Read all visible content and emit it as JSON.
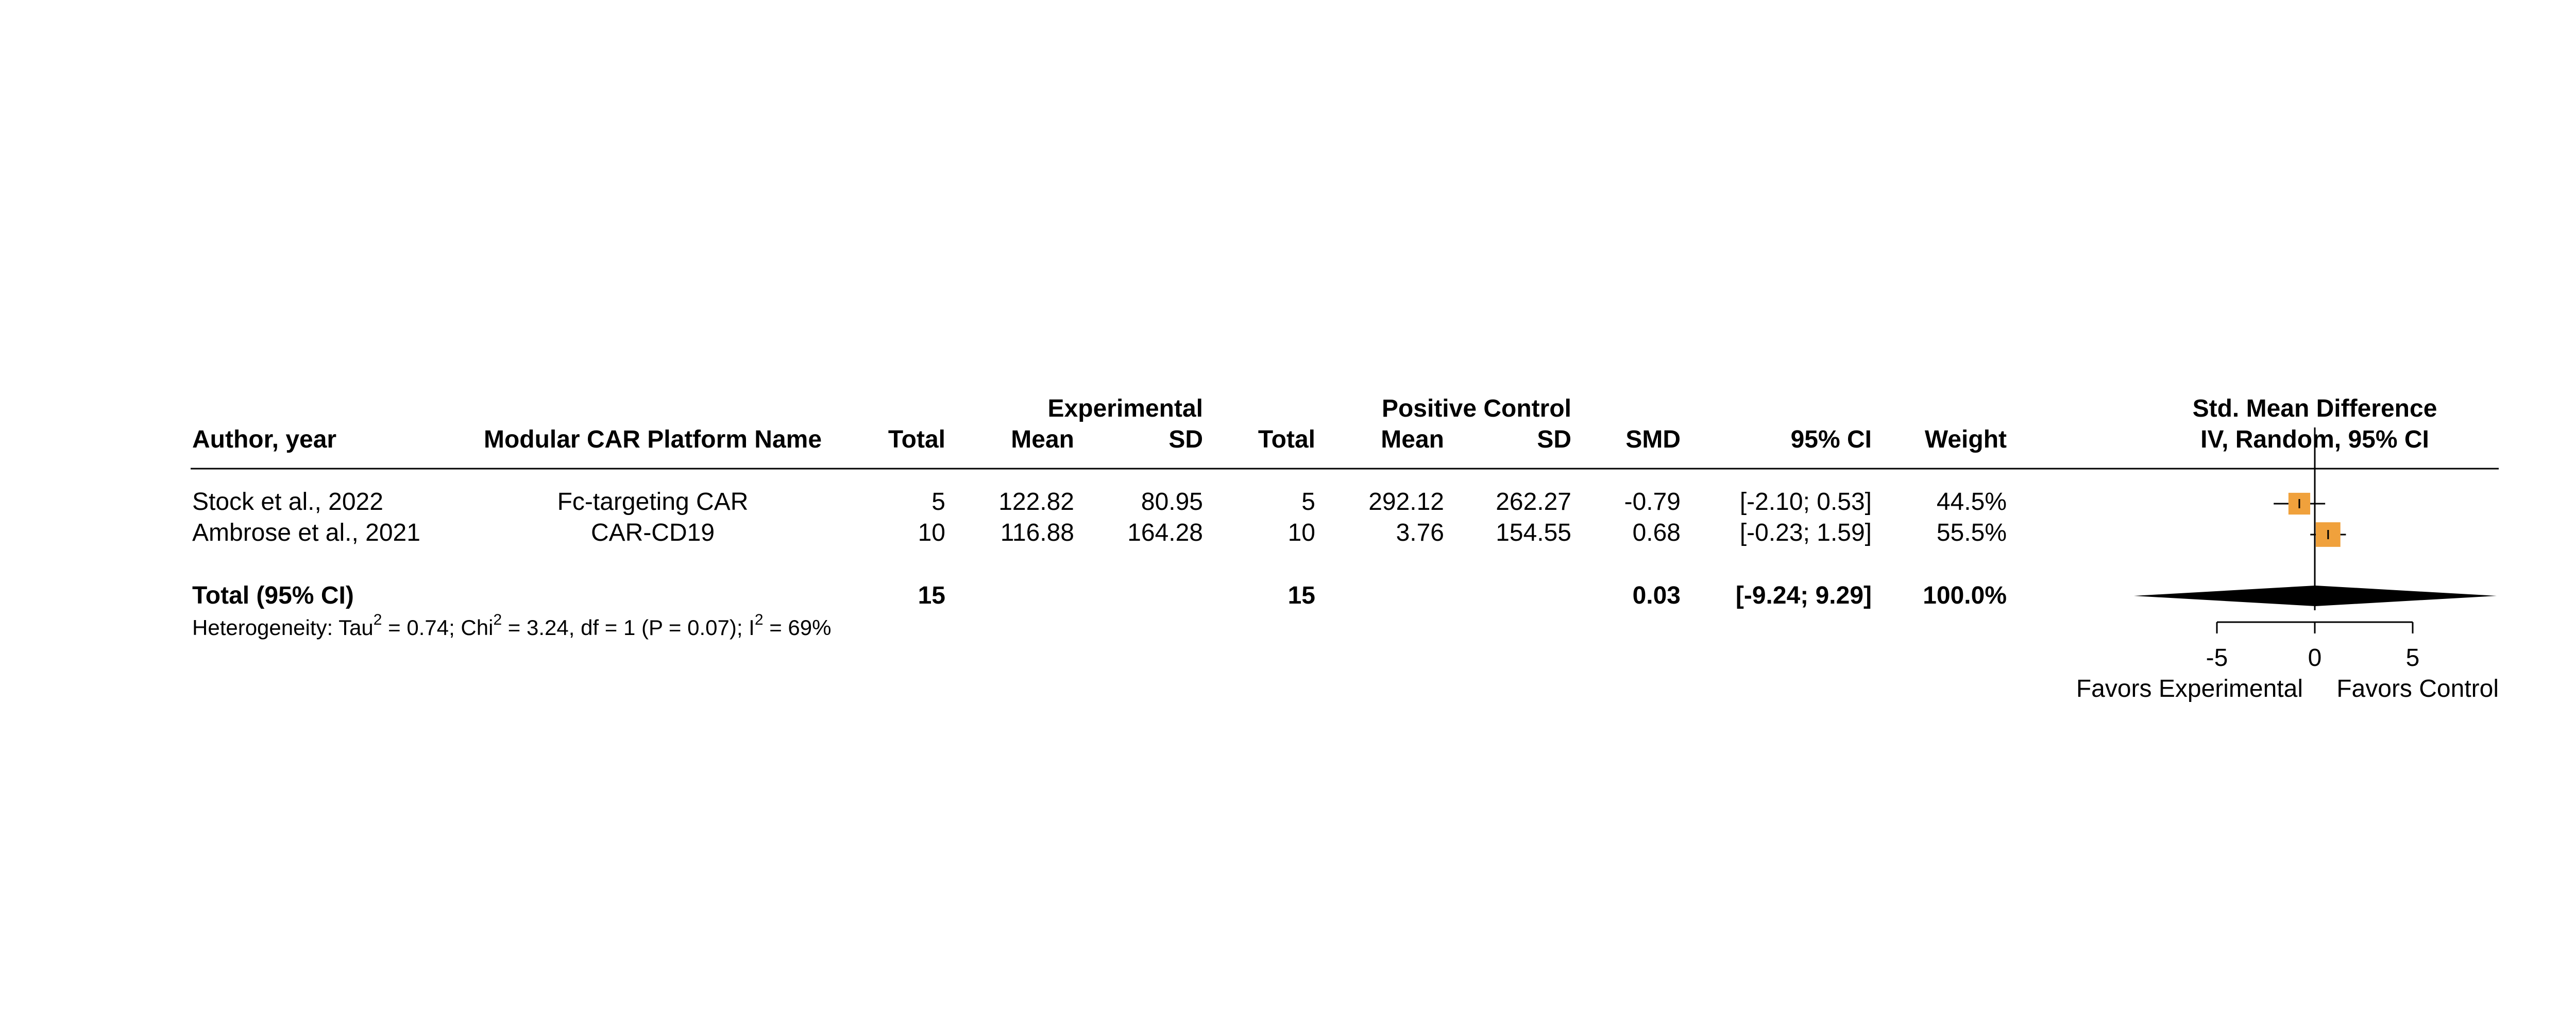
{
  "headers": {
    "author": "Author, year",
    "platform": "Modular CAR Platform Name",
    "exp_group": "Experimental",
    "exp_total": "Total",
    "exp_mean": "Mean",
    "exp_sd": "SD",
    "ctrl_group": "Positive Control",
    "ctrl_total": "Total",
    "ctrl_mean": "Mean",
    "ctrl_sd": "SD",
    "smd": "SMD",
    "ci": "95% CI",
    "weight": "Weight",
    "plot_title": "Std. Mean Difference",
    "plot_subtitle": "IV, Random, 95% CI"
  },
  "studies": [
    {
      "author": "Stock et al., 2022",
      "platform": "Fc-targeting CAR",
      "exp_total": "5",
      "exp_mean": "122.82",
      "exp_sd": "80.95",
      "ctrl_total": "5",
      "ctrl_mean": "292.12",
      "ctrl_sd": "262.27",
      "smd": "-0.79",
      "ci": "[-2.10; 0.53]",
      "weight": "44.5%"
    },
    {
      "author": "Ambrose et al., 2021",
      "platform": "CAR-CD19",
      "exp_total": "10",
      "exp_mean": "116.88",
      "exp_sd": "164.28",
      "ctrl_total": "10",
      "ctrl_mean": "3.76",
      "ctrl_sd": "154.55",
      "smd": "0.68",
      "ci": "[-0.23; 1.59]",
      "weight": "55.5%"
    }
  ],
  "total": {
    "label": "Total (95% CI)",
    "exp_total": "15",
    "ctrl_total": "15",
    "smd": "0.03",
    "ci": "[-9.24; 9.29]",
    "weight": "100.0%"
  },
  "heterogeneity": {
    "prefix": "Heterogeneity: Tau",
    "tau2_sup": "2",
    "tau2_val": " = 0.74; Chi",
    "chi2_sup": "2",
    "chi2_val": " = 3.24, df = 1 (P = 0.07); I",
    "i2_sup": "2",
    "i2_val": " = 69%"
  },
  "axis": {
    "ticks": [
      -5,
      0,
      5
    ],
    "tick_labels": [
      "-5",
      "0",
      "5"
    ],
    "favors_left": "Favors Experimental",
    "favors_right": "Favors Control"
  },
  "colors": {
    "square": "#F0A13C",
    "diamond": "#000000"
  },
  "chart_data": {
    "type": "forest",
    "title": "Std. Mean Difference",
    "subtitle": "IV, Random, 95% CI",
    "xlim": [
      -9.24,
      9.29
    ],
    "ticks": [
      -5,
      0,
      5
    ],
    "series": [
      {
        "name": "Stock et al., 2022",
        "estimate": -0.79,
        "ci_low": -2.1,
        "ci_high": 0.53,
        "weight": 44.5
      },
      {
        "name": "Ambrose et al., 2021",
        "estimate": 0.68,
        "ci_low": -0.23,
        "ci_high": 1.59,
        "weight": 55.5
      }
    ],
    "pooled": {
      "estimate": 0.03,
      "ci_low": -9.24,
      "ci_high": 9.29,
      "weight": 100.0
    }
  }
}
